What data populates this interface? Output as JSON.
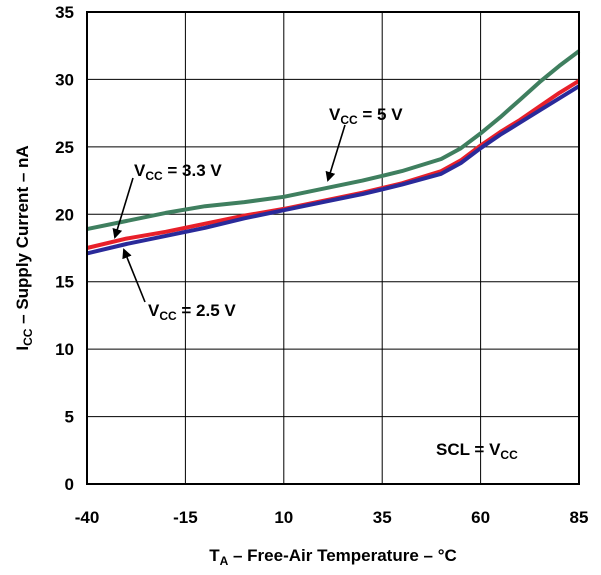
{
  "chart_data": {
    "type": "line",
    "title": "",
    "xlabel": {
      "main": "T",
      "sub": "A",
      "rest": " – Free-Air Temperature – °C"
    },
    "ylabel": {
      "main": "I",
      "sub": "CC",
      "rest": " – Supply Current – nA"
    },
    "xlim": [
      -40,
      85
    ],
    "ylim": [
      0,
      35
    ],
    "x_ticks": [
      -40,
      -15,
      10,
      35,
      60,
      85
    ],
    "y_ticks": [
      0,
      5,
      10,
      15,
      20,
      25,
      30,
      35
    ],
    "x_tick_labels": [
      "-40",
      "-15",
      "10",
      "35",
      "60",
      "85"
    ],
    "y_tick_labels": [
      "0",
      "5",
      "10",
      "15",
      "20",
      "25",
      "30",
      "35"
    ],
    "grid": true,
    "series": [
      {
        "name": "VCC = 5 V",
        "color": "#3f7f5f",
        "x": [
          -40,
          -30,
          -20,
          -10,
          0,
          10,
          20,
          30,
          40,
          50,
          55,
          60,
          65,
          70,
          75,
          80,
          85
        ],
        "y": [
          18.9,
          19.5,
          20.1,
          20.6,
          20.9,
          21.3,
          21.9,
          22.5,
          23.2,
          24.1,
          24.9,
          26.0,
          27.2,
          28.5,
          29.8,
          31.0,
          32.1
        ]
      },
      {
        "name": "VCC = 3.3 V",
        "color": "#e8202a",
        "x": [
          -40,
          -30,
          -20,
          -10,
          0,
          10,
          20,
          30,
          40,
          50,
          55,
          60,
          65,
          70,
          75,
          80,
          85
        ],
        "y": [
          17.5,
          18.2,
          18.7,
          19.3,
          19.9,
          20.4,
          21.0,
          21.6,
          22.3,
          23.2,
          24.0,
          25.1,
          26.1,
          27.0,
          28.0,
          29.0,
          29.9
        ]
      },
      {
        "name": "VCC = 2.5 V",
        "color": "#2a2a9a",
        "x": [
          -40,
          -30,
          -20,
          -10,
          0,
          10,
          20,
          30,
          40,
          50,
          55,
          60,
          65,
          70,
          75,
          80,
          85
        ],
        "y": [
          17.1,
          17.8,
          18.4,
          19.0,
          19.7,
          20.3,
          20.9,
          21.5,
          22.2,
          23.0,
          23.8,
          24.9,
          25.9,
          26.8,
          27.7,
          28.6,
          29.5
        ]
      }
    ],
    "annotations": [
      {
        "main": "V",
        "sub": "CC",
        "rest": " = 5 V"
      },
      {
        "main": "V",
        "sub": "CC",
        "rest": " = 3.3 V"
      },
      {
        "main": "V",
        "sub": "CC",
        "rest": " = 2.5 V"
      },
      {
        "main": "SCL = V",
        "sub": "CC",
        "rest": ""
      }
    ]
  }
}
